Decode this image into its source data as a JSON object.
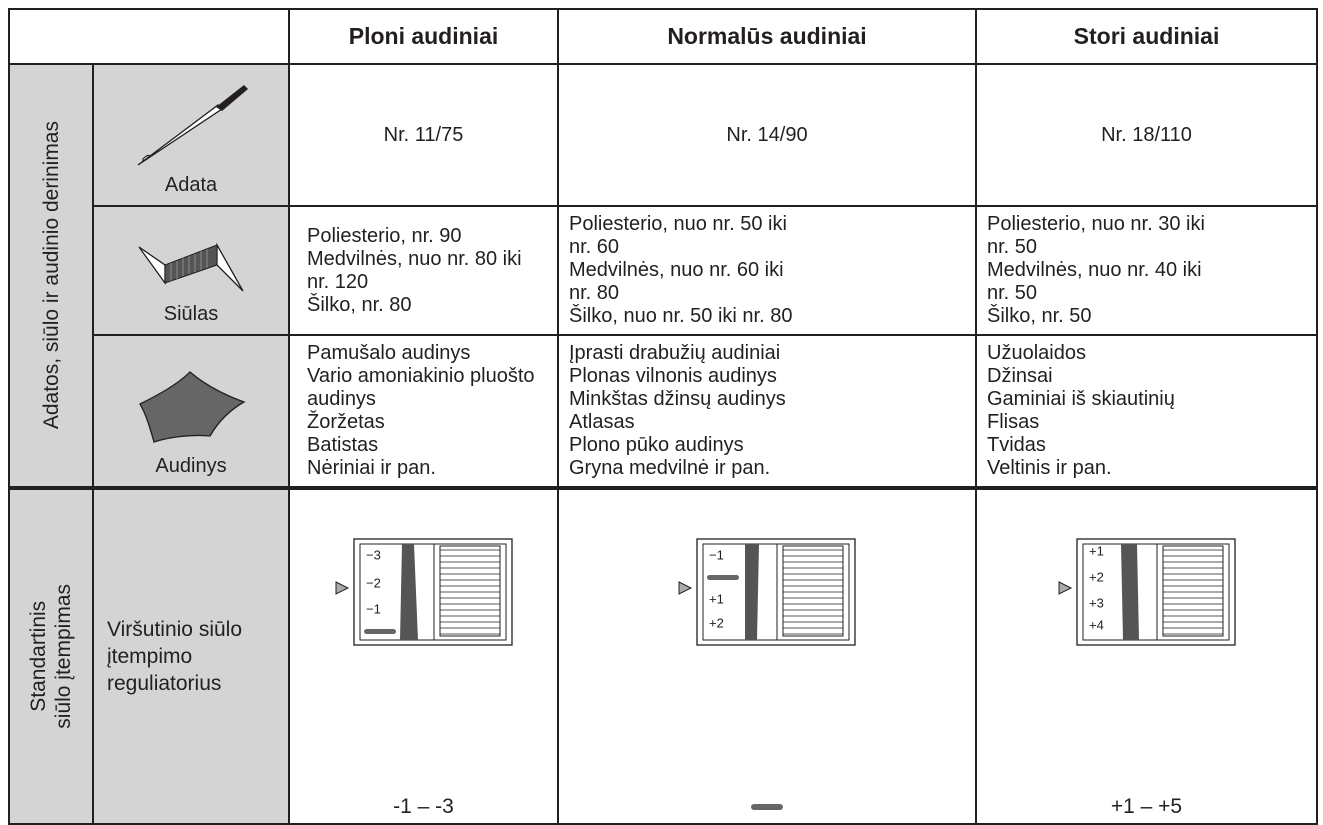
{
  "header": {
    "columns": [
      "Ploni audiniai",
      "Normalūs audiniai",
      "Stori audiniai"
    ]
  },
  "groups": [
    {
      "label": "Adatos, siūlo ir audinio derinimas",
      "rows": [
        {
          "label": "Adata",
          "cells": [
            [
              "Nr. 11/75"
            ],
            [
              "Nr. 14/90"
            ],
            [
              "Nr. 18/110"
            ]
          ]
        },
        {
          "label": "Siūlas",
          "cells": [
            [
              "Poliesterio, nr. 90",
              "Medvilnės, nuo nr. 80 iki",
              "nr. 120",
              "Šilko, nr. 80"
            ],
            [
              "Poliesterio, nuo nr. 50 iki",
              "nr. 60",
              "Medvilnės, nuo nr. 60 iki",
              "nr. 80",
              "Šilko, nuo nr. 50 iki nr. 80"
            ],
            [
              "Poliesterio, nuo nr. 30 iki",
              "nr. 50",
              "Medvilnės, nuo nr. 40 iki",
              "nr. 50",
              "Šilko, nr. 50"
            ]
          ]
        },
        {
          "label": "Audinys",
          "cells": [
            [
              "Pamušalo audinys",
              "Vario amoniakinio pluošto",
              "audinys",
              "Žoržetas",
              "Batistas",
              "Nėriniai ir pan."
            ],
            [
              "Įprasti drabužių audiniai",
              "Plonas vilnonis audinys",
              "Minkštas džinsų audinys",
              "Atlasas",
              "Plono pūko audinys",
              "Gryna medvilnė ir pan."
            ],
            [
              "Užuolaidos",
              "Džinsai",
              "Gaminiai iš skiautinių",
              "Flisas",
              "Tvidas",
              "Veltinis ir pan."
            ]
          ]
        }
      ]
    },
    {
      "label": [
        "Standartinis",
        "siūlo įtempimas"
      ],
      "rows": [
        {
          "label": [
            "Viršutinio siūlo",
            "įtempimo",
            "reguliatorius"
          ],
          "cells": [
            {
              "dial": [
                "−3",
                "−2",
                "−1"
              ],
              "setting": "-1 – -3"
            },
            {
              "dial": [
                "−1",
                "+1",
                "+2"
              ]
            },
            {
              "dial": [
                "+1",
                "+2",
                "+3",
                "+4"
              ],
              "setting": "+1 – +5"
            }
          ]
        }
      ]
    }
  ]
}
